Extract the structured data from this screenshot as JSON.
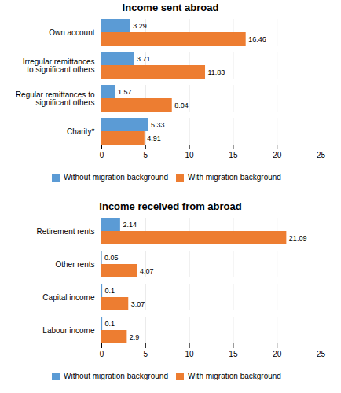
{
  "chart_data": [
    {
      "type": "bar",
      "orientation": "horizontal",
      "title": "Income sent abroad",
      "categories": [
        "Own account",
        "Irregular remittances to significant others",
        "Regular remittances to significant others",
        "Charity*"
      ],
      "series": [
        {
          "name": "Without migration background",
          "color": "#5b9bd5",
          "values": [
            3.29,
            3.71,
            1.57,
            5.33
          ]
        },
        {
          "name": "With migration background",
          "color": "#ed7d31",
          "values": [
            16.46,
            11.83,
            8.04,
            4.91
          ]
        }
      ],
      "xlim": [
        0,
        25
      ],
      "xticks": [
        0,
        5,
        10,
        15,
        20,
        25
      ],
      "grid": true,
      "data_labels": true,
      "legend": "bottom"
    },
    {
      "type": "bar",
      "orientation": "horizontal",
      "title": "Income received from abroad",
      "categories": [
        "Retirement rents",
        "Other rents",
        "Capital income",
        "Labour income"
      ],
      "series": [
        {
          "name": "Without migration background",
          "color": "#5b9bd5",
          "values": [
            2.14,
            0.05,
            0.1,
            0.1
          ]
        },
        {
          "name": "With migration background",
          "color": "#ed7d31",
          "values": [
            21.09,
            4.07,
            3.07,
            2.9
          ]
        }
      ],
      "xlim": [
        0,
        25
      ],
      "xticks": [
        0,
        5,
        10,
        15,
        20,
        25
      ],
      "grid": true,
      "data_labels": true,
      "legend": "bottom"
    }
  ]
}
